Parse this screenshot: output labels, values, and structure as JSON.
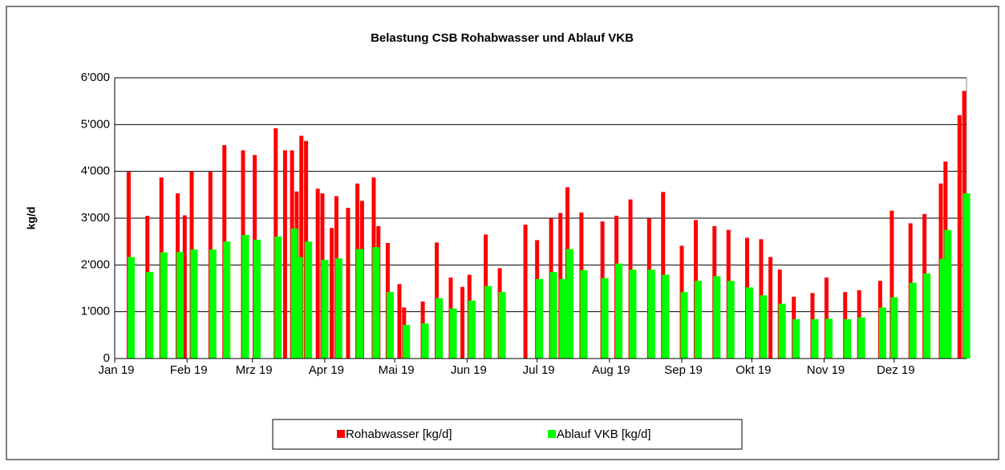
{
  "chart_data": {
    "type": "bar",
    "title": "Belastung CSB Rohabwasser und Ablauf VKB",
    "y_label": "kg/d",
    "x": [
      6,
      14,
      20,
      27,
      30,
      33,
      41,
      47,
      55,
      60,
      69,
      73,
      76,
      78,
      80,
      82,
      87,
      89,
      93,
      95,
      100,
      104,
      106,
      111,
      113,
      117,
      122,
      124,
      132,
      138,
      144,
      149,
      152,
      159,
      165,
      176,
      181,
      187,
      191,
      194,
      200,
      209,
      215,
      221,
      229,
      235,
      243,
      249,
      257,
      263,
      271,
      277,
      281,
      285,
      291,
      299,
      305,
      313,
      319,
      328,
      333,
      341,
      347,
      354,
      356,
      362,
      364
    ],
    "series": [
      {
        "name": "Rohabwasser [kg/d]",
        "color": "#ff0000",
        "values": [
          3990,
          3050,
          3870,
          3530,
          3060,
          4000,
          3990,
          4560,
          4450,
          4350,
          4920,
          4450,
          4450,
          3570,
          4760,
          4650,
          3630,
          3530,
          2790,
          3470,
          3220,
          3740,
          3370,
          3870,
          2830,
          2470,
          1590,
          1090,
          1220,
          2480,
          1730,
          1530,
          1790,
          2650,
          1930,
          2860,
          2530,
          2990,
          3110,
          3660,
          3120,
          2930,
          3050,
          3400,
          2990,
          3560,
          2410,
          2960,
          2830,
          2750,
          2580,
          2550,
          2170,
          1900,
          1320,
          1400,
          1730,
          1420,
          1460,
          1660,
          3160,
          2890,
          3090,
          3740,
          4210,
          5200,
          5720
        ]
      },
      {
        "name": "Ablauf VKB [kg/d]",
        "color": "#00ff00",
        "values": [
          2170,
          1850,
          2270,
          2280,
          null,
          2330,
          2330,
          2500,
          2640,
          2540,
          2610,
          null,
          2780,
          2170,
          null,
          2500,
          null,
          2110,
          null,
          2140,
          null,
          2340,
          null,
          2380,
          null,
          1420,
          null,
          720,
          750,
          1290,
          1070,
          null,
          1240,
          1550,
          1420,
          null,
          1700,
          1850,
          1700,
          2340,
          1890,
          1720,
          2030,
          1900,
          1900,
          1790,
          1420,
          1660,
          1760,
          1660,
          1520,
          1350,
          null,
          1170,
          840,
          840,
          850,
          840,
          880,
          1090,
          1310,
          1620,
          1820,
          2130,
          2750,
          null,
          3530
        ]
      }
    ],
    "xlim": [
      0,
      365
    ],
    "xticks": [
      {
        "value": 0,
        "label": "Jan 19"
      },
      {
        "value": 31,
        "label": "Feb 19"
      },
      {
        "value": 59,
        "label": "Mrz 19"
      },
      {
        "value": 90,
        "label": "Apr 19"
      },
      {
        "value": 120,
        "label": "Mai 19"
      },
      {
        "value": 151,
        "label": "Jun 19"
      },
      {
        "value": 181,
        "label": "Jul 19"
      },
      {
        "value": 212,
        "label": "Aug 19"
      },
      {
        "value": 243,
        "label": "Sep 19"
      },
      {
        "value": 273,
        "label": "Okt 19"
      },
      {
        "value": 304,
        "label": "Nov 19"
      },
      {
        "value": 334,
        "label": "Dez 19"
      }
    ],
    "ylim": [
      0,
      6000
    ],
    "yticks": [
      0,
      {
        "value": 1000,
        "label": "1'000"
      },
      {
        "value": 2000,
        "label": "2'000"
      },
      {
        "value": 3000,
        "label": "3'000"
      },
      {
        "value": 4000,
        "label": "4'000"
      },
      {
        "value": 5000,
        "label": "5'000"
      },
      {
        "value": 6000,
        "label": "6'000"
      }
    ],
    "grid": true,
    "legend": "bottom"
  }
}
